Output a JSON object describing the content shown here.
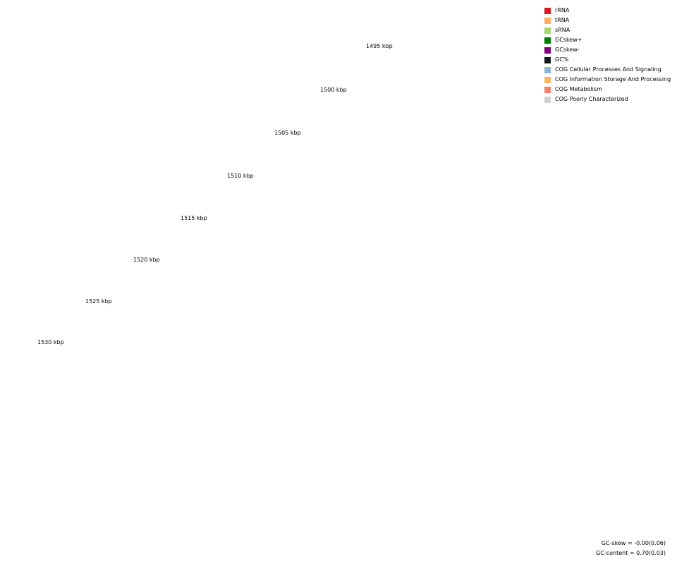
{
  "legend": [
    {
      "label": "rRNA",
      "color": "#d7191c",
      "icon": "rrna-swatch-icon"
    },
    {
      "label": "tRNA",
      "color": "#fdae61",
      "icon": "trna-swatch-icon"
    },
    {
      "label": "sRNA",
      "color": "#a6d96a",
      "icon": "srna-swatch-icon"
    },
    {
      "label": "GCskew+",
      "color": "#008000",
      "icon": "gcskew-plus-swatch-icon"
    },
    {
      "label": "GCskew-",
      "color": "#800080",
      "icon": "gcskew-minus-swatch-icon"
    },
    {
      "label": "GC%",
      "color": "#1a1a1a",
      "icon": "gc-percent-swatch-icon"
    },
    {
      "label": "COG Cellular Processes And Signaling",
      "color": "#8fb4d9",
      "icon": "cog-cellular-swatch-icon"
    },
    {
      "label": "COG Information Storage And Processing",
      "color": "#fdb462",
      "icon": "cog-information-swatch-icon"
    },
    {
      "label": "COG Metabolism",
      "color": "#f4806e",
      "icon": "cog-metabolism-swatch-icon"
    },
    {
      "label": "COG Poorly Characterized",
      "color": "#d0d0d0",
      "icon": "cog-poorly-swatch-icon"
    }
  ],
  "positions": [
    "1495 kbp",
    "1500 kbp",
    "1505 kbp",
    "1510 kbp",
    "1515 kbp",
    "1520 kbp",
    "1525 kbp",
    "1530 kbp"
  ],
  "stats": {
    "gc_skew": "GC-skew = -0.00(0.06)",
    "gc_content": "GC-content = 0.70(0.03)"
  }
}
